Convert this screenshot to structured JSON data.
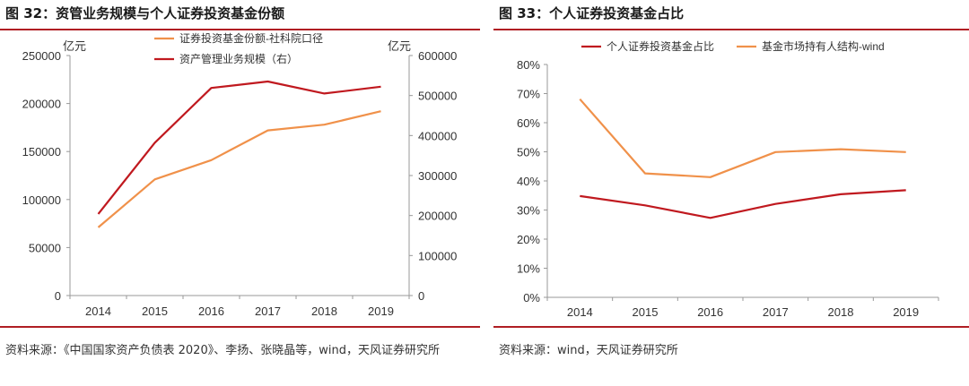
{
  "left_panel": {
    "title": "图 32：资管业务规模与个人证券投资基金份额",
    "source": "资料来源：《中国国家资产负债表 2020》、李扬、张晓晶等，wind，天风证券研究所"
  },
  "right_panel": {
    "title": "图 33：个人证券投资基金占比",
    "source": "资料来源：wind，天风证券研究所"
  },
  "chart_data": [
    {
      "type": "line",
      "x": [
        "2014",
        "2015",
        "2016",
        "2017",
        "2018",
        "2019"
      ],
      "y_left_unit": "亿元",
      "y_right_unit": "亿元",
      "ylim_left": [
        0,
        250000
      ],
      "yticks_left": [
        "0",
        "50000",
        "100000",
        "150000",
        "200000",
        "250000"
      ],
      "ylim_right": [
        0,
        600000
      ],
      "yticks_right": [
        "0",
        "100000",
        "200000",
        "300000",
        "400000",
        "500000",
        "600000"
      ],
      "grid": false,
      "legend_position": "top-center",
      "series": [
        {
          "name": "证券投资基金份额-社科院口径",
          "axis": "left",
          "color": "#f0914a",
          "values": [
            71000,
            121000,
            141000,
            172000,
            178000,
            192000
          ]
        },
        {
          "name": "资产管理业务规模（右）",
          "axis": "right",
          "color": "#c0191f",
          "values": [
            204000,
            382000,
            519000,
            535000,
            505000,
            522000
          ]
        }
      ]
    },
    {
      "type": "line",
      "x": [
        "2014",
        "2015",
        "2016",
        "2017",
        "2018",
        "2019"
      ],
      "ylim": [
        0,
        80
      ],
      "yticks": [
        "0%",
        "10%",
        "20%",
        "30%",
        "40%",
        "50%",
        "60%",
        "70%",
        "80%"
      ],
      "grid": false,
      "legend_position": "top-center",
      "series": [
        {
          "name": "个人证券投资基金占比",
          "color": "#c0191f",
          "values": [
            34.8,
            31.6,
            27.3,
            32.1,
            35.4,
            36.8
          ]
        },
        {
          "name": "基金市场持有人结构-wind",
          "color": "#f0914a",
          "values": [
            68.1,
            42.6,
            41.3,
            49.9,
            50.9,
            49.9
          ]
        }
      ]
    }
  ]
}
